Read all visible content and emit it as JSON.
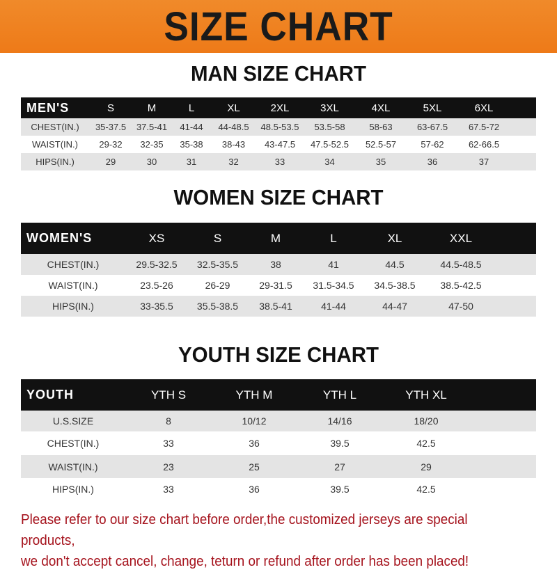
{
  "header": {
    "title": "SIZE CHART"
  },
  "men": {
    "title": "MAN SIZE CHART",
    "columns": [
      "MEN'S",
      "S",
      "M",
      "L",
      "XL",
      "2XL",
      "3XL",
      "4XL",
      "5XL",
      "6XL"
    ],
    "rows": [
      [
        "CHEST(IN.)",
        "35-37.5",
        "37.5-41",
        "41-44",
        "44-48.5",
        "48.5-53.5",
        "53.5-58",
        "58-63",
        "63-67.5",
        "67.5-72"
      ],
      [
        "WAIST(IN.)",
        "29-32",
        "32-35",
        "35-38",
        "38-43",
        "43-47.5",
        "47.5-52.5",
        "52.5-57",
        "57-62",
        "62-66.5"
      ],
      [
        "HIPS(IN.)",
        "29",
        "30",
        "31",
        "32",
        "33",
        "34",
        "35",
        "36",
        "37"
      ]
    ]
  },
  "women": {
    "title": "WOMEN SIZE CHART",
    "columns": [
      "WOMEN'S",
      "XS",
      "S",
      "M",
      "L",
      "XL",
      "XXL"
    ],
    "rows": [
      [
        "CHEST(IN.)",
        "29.5-32.5",
        "32.5-35.5",
        "38",
        "41",
        "44.5",
        "44.5-48.5"
      ],
      [
        "WAIST(IN.)",
        "23.5-26",
        "26-29",
        "29-31.5",
        "31.5-34.5",
        "34.5-38.5",
        "38.5-42.5"
      ],
      [
        "HIPS(IN.)",
        "33-35.5",
        "35.5-38.5",
        "38.5-41",
        "41-44",
        "44-47",
        "47-50"
      ]
    ]
  },
  "youth": {
    "title": "YOUTH SIZE CHART",
    "columns": [
      "YOUTH",
      "YTH S",
      "YTH M",
      "YTH L",
      "YTH XL"
    ],
    "rows": [
      [
        "U.S.SIZE",
        "8",
        "10/12",
        "14/16",
        "18/20"
      ],
      [
        "CHEST(IN.)",
        "33",
        "36",
        "39.5",
        "42.5"
      ],
      [
        "WAIST(IN.)",
        "23",
        "25",
        "27",
        "29"
      ],
      [
        "HIPS(IN.)",
        "33",
        "36",
        "39.5",
        "42.5"
      ]
    ]
  },
  "note": {
    "line1": "Please refer to our size chart before order,the customized jerseys are special products,",
    "line2": "we don't accept cancel, change, teturn or refund after order has been placed!"
  },
  "colors": {
    "banner": "#ee7a18",
    "header_row": "#111111",
    "stripe": "#e4e4e4",
    "note": "#a5121c"
  }
}
